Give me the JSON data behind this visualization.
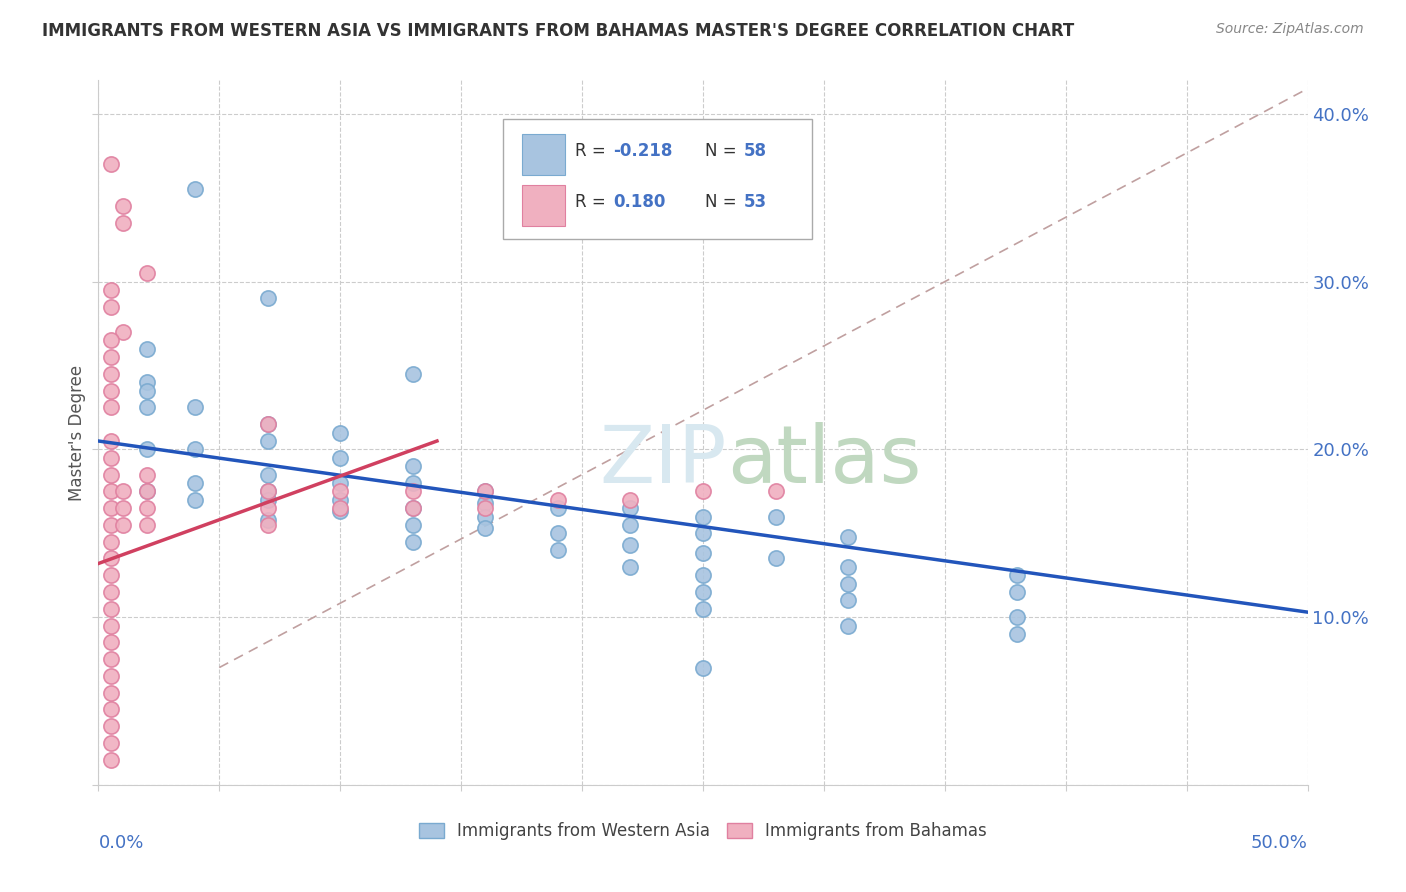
{
  "title": "IMMIGRANTS FROM WESTERN ASIA VS IMMIGRANTS FROM BAHAMAS MASTER'S DEGREE CORRELATION CHART",
  "source": "Source: ZipAtlas.com",
  "ylabel": "Master's Degree",
  "xlim": [
    0.0,
    0.5
  ],
  "ylim": [
    0.0,
    0.42
  ],
  "yticks": [
    0.0,
    0.1,
    0.2,
    0.3,
    0.4
  ],
  "ytick_labels": [
    "",
    "10.0%",
    "20.0%",
    "30.0%",
    "40.0%"
  ],
  "blue_color": "#A8C4E0",
  "pink_color": "#F0B0C0",
  "blue_scatter": [
    [
      0.02,
      0.26
    ],
    [
      0.04,
      0.355
    ],
    [
      0.07,
      0.29
    ],
    [
      0.13,
      0.245
    ],
    [
      0.02,
      0.24
    ],
    [
      0.02,
      0.235
    ],
    [
      0.02,
      0.225
    ],
    [
      0.04,
      0.225
    ],
    [
      0.07,
      0.215
    ],
    [
      0.1,
      0.21
    ],
    [
      0.07,
      0.205
    ],
    [
      0.02,
      0.2
    ],
    [
      0.04,
      0.2
    ],
    [
      0.1,
      0.195
    ],
    [
      0.13,
      0.19
    ],
    [
      0.07,
      0.185
    ],
    [
      0.04,
      0.18
    ],
    [
      0.1,
      0.18
    ],
    [
      0.13,
      0.18
    ],
    [
      0.16,
      0.175
    ],
    [
      0.02,
      0.175
    ],
    [
      0.07,
      0.175
    ],
    [
      0.04,
      0.17
    ],
    [
      0.07,
      0.17
    ],
    [
      0.1,
      0.17
    ],
    [
      0.16,
      0.168
    ],
    [
      0.13,
      0.165
    ],
    [
      0.19,
      0.165
    ],
    [
      0.22,
      0.165
    ],
    [
      0.1,
      0.163
    ],
    [
      0.16,
      0.16
    ],
    [
      0.25,
      0.16
    ],
    [
      0.28,
      0.16
    ],
    [
      0.07,
      0.158
    ],
    [
      0.13,
      0.155
    ],
    [
      0.22,
      0.155
    ],
    [
      0.16,
      0.153
    ],
    [
      0.19,
      0.15
    ],
    [
      0.25,
      0.15
    ],
    [
      0.31,
      0.148
    ],
    [
      0.13,
      0.145
    ],
    [
      0.22,
      0.143
    ],
    [
      0.19,
      0.14
    ],
    [
      0.25,
      0.138
    ],
    [
      0.28,
      0.135
    ],
    [
      0.22,
      0.13
    ],
    [
      0.31,
      0.13
    ],
    [
      0.25,
      0.125
    ],
    [
      0.38,
      0.125
    ],
    [
      0.31,
      0.12
    ],
    [
      0.25,
      0.115
    ],
    [
      0.38,
      0.115
    ],
    [
      0.31,
      0.11
    ],
    [
      0.25,
      0.105
    ],
    [
      0.38,
      0.1
    ],
    [
      0.31,
      0.095
    ],
    [
      0.38,
      0.09
    ],
    [
      0.25,
      0.07
    ]
  ],
  "pink_scatter": [
    [
      0.005,
      0.37
    ],
    [
      0.01,
      0.345
    ],
    [
      0.01,
      0.335
    ],
    [
      0.02,
      0.305
    ],
    [
      0.005,
      0.295
    ],
    [
      0.005,
      0.285
    ],
    [
      0.01,
      0.27
    ],
    [
      0.005,
      0.265
    ],
    [
      0.005,
      0.255
    ],
    [
      0.005,
      0.245
    ],
    [
      0.005,
      0.235
    ],
    [
      0.005,
      0.225
    ],
    [
      0.07,
      0.215
    ],
    [
      0.005,
      0.205
    ],
    [
      0.005,
      0.195
    ],
    [
      0.005,
      0.185
    ],
    [
      0.005,
      0.175
    ],
    [
      0.005,
      0.165
    ],
    [
      0.005,
      0.155
    ],
    [
      0.005,
      0.145
    ],
    [
      0.005,
      0.135
    ],
    [
      0.005,
      0.125
    ],
    [
      0.005,
      0.115
    ],
    [
      0.005,
      0.105
    ],
    [
      0.005,
      0.095
    ],
    [
      0.005,
      0.085
    ],
    [
      0.005,
      0.075
    ],
    [
      0.005,
      0.065
    ],
    [
      0.005,
      0.055
    ],
    [
      0.005,
      0.045
    ],
    [
      0.005,
      0.035
    ],
    [
      0.005,
      0.025
    ],
    [
      0.005,
      0.015
    ],
    [
      0.01,
      0.175
    ],
    [
      0.01,
      0.165
    ],
    [
      0.01,
      0.155
    ],
    [
      0.02,
      0.185
    ],
    [
      0.02,
      0.175
    ],
    [
      0.02,
      0.165
    ],
    [
      0.02,
      0.155
    ],
    [
      0.07,
      0.175
    ],
    [
      0.07,
      0.165
    ],
    [
      0.07,
      0.155
    ],
    [
      0.1,
      0.175
    ],
    [
      0.1,
      0.165
    ],
    [
      0.13,
      0.175
    ],
    [
      0.13,
      0.165
    ],
    [
      0.16,
      0.175
    ],
    [
      0.16,
      0.165
    ],
    [
      0.19,
      0.17
    ],
    [
      0.22,
      0.17
    ],
    [
      0.25,
      0.175
    ],
    [
      0.28,
      0.175
    ]
  ],
  "legend_label_blue": "Immigrants from Western Asia",
  "legend_label_pink": "Immigrants from Bahamas"
}
